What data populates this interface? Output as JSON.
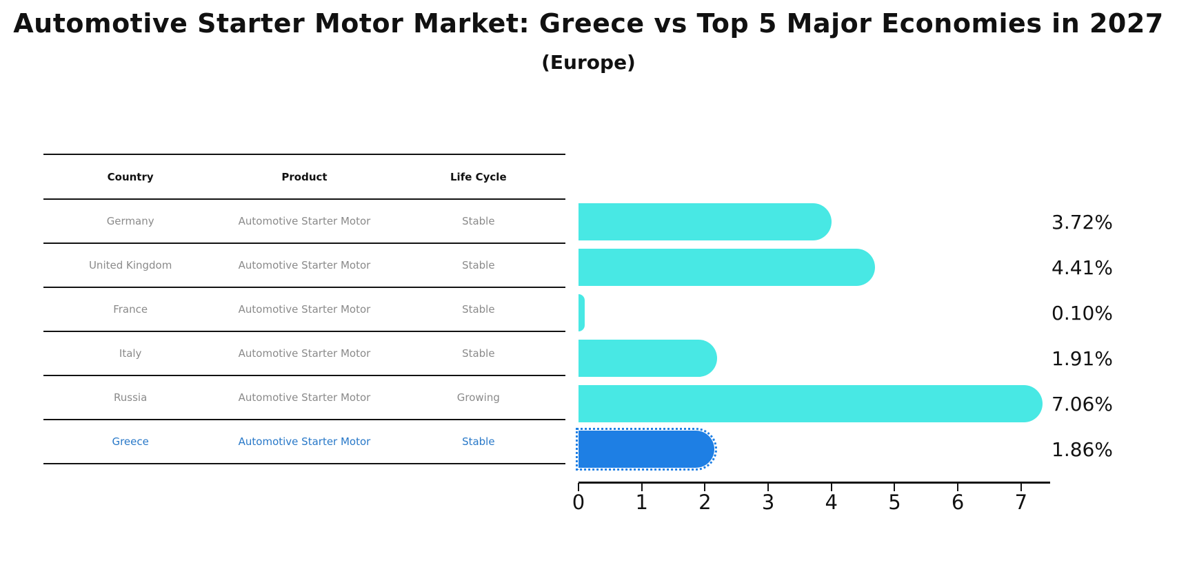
{
  "title": "Automotive Starter Motor Market: Greece vs Top 5 Major Economies in 2027",
  "subtitle": "(Europe)",
  "table": {
    "headers": [
      "Country",
      "Product",
      "Life Cycle"
    ],
    "rows": [
      {
        "country": "Germany",
        "product": "Automotive Starter Motor",
        "life_cycle": "Stable"
      },
      {
        "country": "United Kingdom",
        "product": "Automotive Starter Motor",
        "life_cycle": "Stable"
      },
      {
        "country": "France",
        "product": "Automotive Starter Motor",
        "life_cycle": "Stable"
      },
      {
        "country": "Italy",
        "product": "Automotive Starter Motor",
        "life_cycle": "Stable"
      },
      {
        "country": "Russia",
        "product": "Automotive Starter Motor",
        "life_cycle": "Growing"
      },
      {
        "country": "Greece",
        "product": "Automotive Starter Motor",
        "life_cycle": "Stable"
      }
    ]
  },
  "chart_data": {
    "type": "bar",
    "orientation": "horizontal",
    "title": "Automotive Starter Motor Market: Greece vs Top 5 Major Economies in 2027 (Europe)",
    "categories": [
      "Germany",
      "United Kingdom",
      "France",
      "Italy",
      "Russia",
      "Greece"
    ],
    "values": [
      3.72,
      4.41,
      0.1,
      1.91,
      7.06,
      1.86
    ],
    "value_labels": [
      "3.72%",
      "4.41%",
      "0.10%",
      "1.91%",
      "7.06%",
      "1.86%"
    ],
    "xticks": [
      "0",
      "1",
      "2",
      "3",
      "4",
      "5",
      "6",
      "7"
    ],
    "xlim": [
      0,
      7.46
    ],
    "grid": false,
    "legend": false,
    "bar_color": "#48e8e4",
    "highlight_index": 5,
    "highlight_color": "#1e7fe4",
    "highlight_text_color": "#2878c8"
  }
}
